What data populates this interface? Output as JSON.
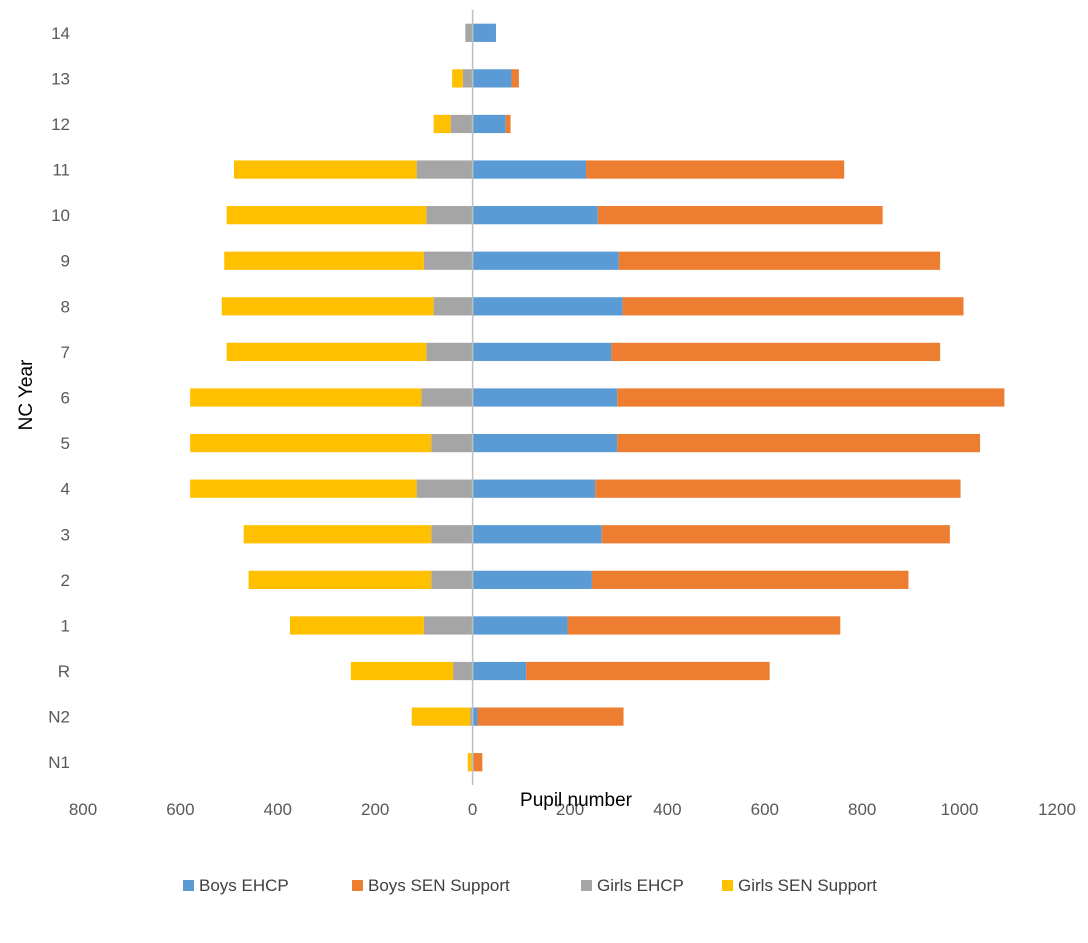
{
  "chart_data": {
    "type": "bar",
    "orientation": "horizontal",
    "stacked": "diverging",
    "categories": [
      "N1",
      "N2",
      "R",
      "1",
      "2",
      "3",
      "4",
      "5",
      "6",
      "7",
      "8",
      "9",
      "10",
      "11",
      "12",
      "13",
      "14"
    ],
    "series": [
      {
        "name": "Boys EHCP",
        "color": "#5B9BD5",
        "values": [
          2,
          10,
          110,
          195,
          245,
          265,
          252,
          297,
          297,
          285,
          308,
          300,
          257,
          233,
          68,
          80,
          48
        ]
      },
      {
        "name": "Boys SEN Support",
        "color": "#ED7D31",
        "values": [
          18,
          300,
          500,
          560,
          650,
          715,
          750,
          745,
          795,
          675,
          700,
          660,
          585,
          530,
          10,
          15,
          0
        ]
      },
      {
        "name": "Girls EHCP",
        "color": "#A5A5A5",
        "values": [
          -2,
          -5,
          -40,
          -100,
          -85,
          -85,
          -115,
          -85,
          -105,
          -95,
          -80,
          -100,
          -95,
          -115,
          -45,
          -20,
          -15
        ]
      },
      {
        "name": "Girls SEN Support",
        "color": "#FFC000",
        "values": [
          -8,
          -120,
          -210,
          -275,
          -375,
          -385,
          -465,
          -495,
          -475,
          -410,
          -435,
          -410,
          -410,
          -375,
          -35,
          -22,
          0
        ]
      }
    ],
    "xlabel": "Pupil number",
    "ylabel": "NC Year",
    "xlim": [
      -800,
      1200
    ],
    "xticks": [
      -800,
      -600,
      -400,
      -200,
      0,
      200,
      400,
      600,
      800,
      1000,
      1200
    ],
    "xtick_labels": [
      "800",
      "600",
      "400",
      "200",
      "0",
      "200",
      "400",
      "600",
      "800",
      "1000",
      "1200"
    ],
    "grid": false,
    "legend_position": "bottom"
  }
}
